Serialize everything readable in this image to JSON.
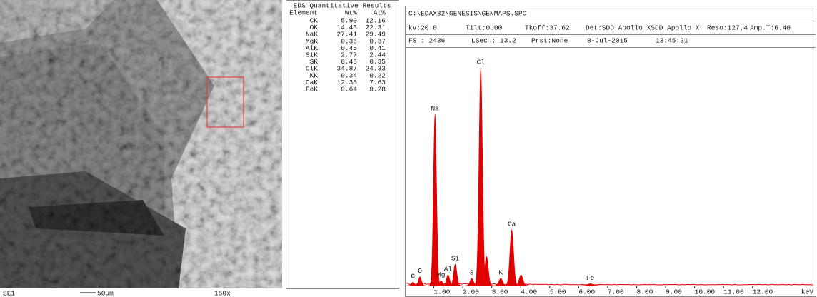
{
  "sem": {
    "label": "SE1",
    "scale_bar": "50µm",
    "magnification": "150x"
  },
  "table": {
    "title": "EDS Quantitative Results",
    "columns": [
      "Element",
      "Wt%",
      "At%"
    ],
    "rows": [
      [
        "CK",
        "5.90",
        "12.16"
      ],
      [
        "OK",
        "14.43",
        "22.31"
      ],
      [
        "NaK",
        "27.41",
        "29.49"
      ],
      [
        "MgK",
        "0.36",
        "0.37"
      ],
      [
        "AlK",
        "0.45",
        "0.41"
      ],
      [
        "SiK",
        "2.77",
        "2.44"
      ],
      [
        "SK",
        "0.46",
        "0.35"
      ],
      [
        "ClK",
        "34.87",
        "24.33"
      ],
      [
        "KK",
        "0.34",
        "0.22"
      ],
      [
        "CaK",
        "12.36",
        "7.63"
      ],
      [
        "FeK",
        "0.64",
        "0.28"
      ]
    ]
  },
  "header": {
    "file": "C:\\EDAX32\\GENESIS\\GENMAPS.SPC",
    "line1": [
      "kV:20.0",
      "Tilt:0.00",
      "Tkoff:37.62",
      "Det:SDD Apollo XSDD Apollo X",
      "Reso:127.4",
      "Amp.T:6.40"
    ],
    "line2": [
      "FS : 2436",
      "LSec : 13.2",
      "Prst:None",
      "8-Jul-2015",
      "13:45:31"
    ]
  },
  "chart_data": {
    "type": "spectrum",
    "xlabel": "keV",
    "categories": [
      "C",
      "O",
      "Na",
      "Mg",
      "Al",
      "Si",
      "S",
      "Cl",
      null,
      "K",
      "Ca",
      null,
      "Fe"
    ],
    "x": [
      0.28,
      0.52,
      1.04,
      1.25,
      1.49,
      1.74,
      2.31,
      2.62,
      2.82,
      3.31,
      3.69,
      4.01,
      6.4
    ],
    "values": [
      35,
      90,
      1761,
      50,
      110,
      220,
      75,
      2238,
      300,
      75,
      572,
      110,
      20
    ],
    "color": "#e00000",
    "xlim": [
      0,
      14.2
    ],
    "ylim": [
      0,
      2436
    ],
    "xticks": [
      {
        "value": 1,
        "label": "1.00"
      },
      {
        "value": 2,
        "label": "2.00"
      },
      {
        "value": 3,
        "label": "3.00"
      },
      {
        "value": 4,
        "label": "4.00"
      },
      {
        "value": 5,
        "label": "5.00"
      },
      {
        "value": 6,
        "label": "6.00"
      },
      {
        "value": 7,
        "label": "7.00"
      },
      {
        "value": 8,
        "label": "8.00"
      },
      {
        "value": 9,
        "label": "9.00"
      },
      {
        "value": 10,
        "label": "10.00"
      },
      {
        "value": 11,
        "label": "11.00"
      },
      {
        "value": 12,
        "label": "12.00"
      }
    ]
  }
}
